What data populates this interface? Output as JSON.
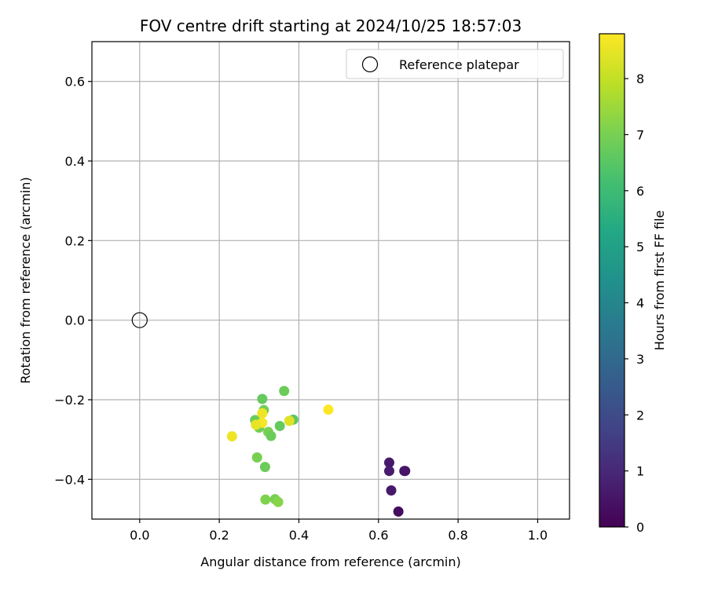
{
  "chart_data": {
    "type": "scatter",
    "title": "FOV centre drift starting at 2024/10/25 18:57:03",
    "xlabel": "Angular distance from reference (arcmin)",
    "ylabel": "Rotation from reference (arcmin)",
    "xlim": [
      -0.12,
      1.08
    ],
    "ylim": [
      -0.5,
      0.7
    ],
    "xticks": [
      0.0,
      0.2,
      0.4,
      0.6,
      0.8,
      1.0
    ],
    "xtick_labels": [
      "0.0",
      "0.2",
      "0.4",
      "0.6",
      "0.8",
      "1.0"
    ],
    "yticks": [
      -0.4,
      -0.2,
      0.0,
      0.2,
      0.4,
      0.6
    ],
    "ytick_labels": [
      "−0.4",
      "−0.2",
      "0.0",
      "0.2",
      "0.4",
      "0.6"
    ],
    "grid": true,
    "legend": {
      "placement": "top-right",
      "entries": [
        "Reference platepar"
      ]
    },
    "reference_point": {
      "x": 0.0,
      "y": 0.0,
      "marker": "open-circle"
    },
    "colorbar": {
      "label": "Hours from first FF file",
      "colormap": "viridis",
      "range": [
        0,
        8.8
      ],
      "ticks": [
        0,
        1,
        2,
        3,
        4,
        5,
        6,
        7,
        8
      ],
      "tick_labels": [
        "0",
        "1",
        "2",
        "3",
        "4",
        "5",
        "6",
        "7",
        "8"
      ]
    },
    "points": [
      {
        "x": 0.627,
        "y": -0.358,
        "c": 0.6
      },
      {
        "x": 0.627,
        "y": -0.379,
        "c": 0.7
      },
      {
        "x": 0.665,
        "y": -0.379,
        "c": 0.4
      },
      {
        "x": 0.667,
        "y": -0.379,
        "c": 0.5
      },
      {
        "x": 0.632,
        "y": -0.428,
        "c": 0.6
      },
      {
        "x": 0.65,
        "y": -0.481,
        "c": 0.3
      },
      {
        "x": 0.308,
        "y": -0.198,
        "c": 6.7
      },
      {
        "x": 0.363,
        "y": -0.178,
        "c": 6.8
      },
      {
        "x": 0.312,
        "y": -0.226,
        "c": 6.9
      },
      {
        "x": 0.386,
        "y": -0.25,
        "c": 6.6
      },
      {
        "x": 0.29,
        "y": -0.251,
        "c": 6.8
      },
      {
        "x": 0.3,
        "y": -0.27,
        "c": 6.9
      },
      {
        "x": 0.352,
        "y": -0.266,
        "c": 6.7
      },
      {
        "x": 0.323,
        "y": -0.281,
        "c": 7.0
      },
      {
        "x": 0.33,
        "y": -0.291,
        "c": 6.8
      },
      {
        "x": 0.295,
        "y": -0.345,
        "c": 7.0
      },
      {
        "x": 0.315,
        "y": -0.369,
        "c": 6.8
      },
      {
        "x": 0.316,
        "y": -0.451,
        "c": 7.1
      },
      {
        "x": 0.34,
        "y": -0.45,
        "c": 7.0
      },
      {
        "x": 0.348,
        "y": -0.457,
        "c": 7.2
      },
      {
        "x": 0.308,
        "y": -0.234,
        "c": 8.6
      },
      {
        "x": 0.308,
        "y": -0.258,
        "c": 8.7
      },
      {
        "x": 0.292,
        "y": -0.263,
        "c": 8.5
      },
      {
        "x": 0.376,
        "y": -0.253,
        "c": 8.4
      },
      {
        "x": 0.474,
        "y": -0.225,
        "c": 8.8
      },
      {
        "x": 0.232,
        "y": -0.292,
        "c": 8.6
      }
    ]
  }
}
